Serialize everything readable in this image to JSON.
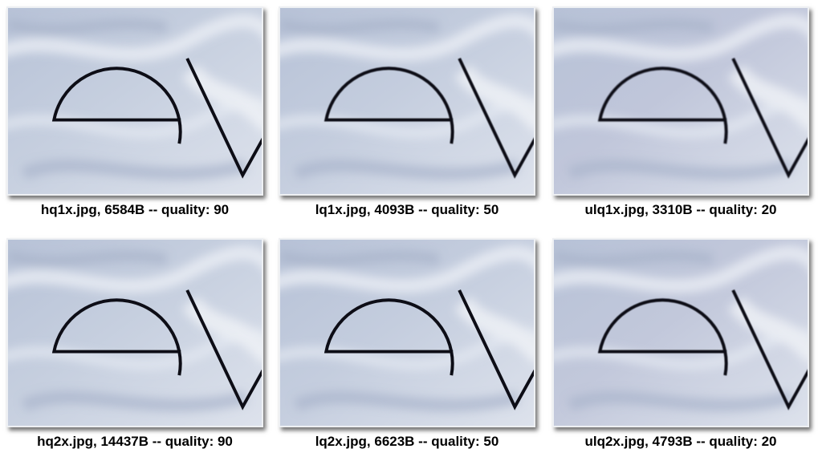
{
  "tiles": [
    {
      "caption": "hq1x.jpg, 6584B -- quality: 90",
      "tint": "#c6cfdf",
      "blur": 0.25
    },
    {
      "caption": "lq1x.jpg, 4093B -- quality: 50",
      "tint": "#c4cdde",
      "blur": 0.45
    },
    {
      "caption": "ulq1x.jpg, 3310B -- quality: 20",
      "tint": "#c0c6da",
      "blur": 0.8
    },
    {
      "caption": "hq2x.jpg, 14437B -- quality: 90",
      "tint": "#c6cfdf",
      "blur": 0.2
    },
    {
      "caption": "lq2x.jpg, 6623B -- quality: 50",
      "tint": "#c4cdde",
      "blur": 0.35
    },
    {
      "caption": "ulq2x.jpg, 4793B -- quality: 20",
      "tint": "#c2c8db",
      "blur": 0.6
    }
  ]
}
